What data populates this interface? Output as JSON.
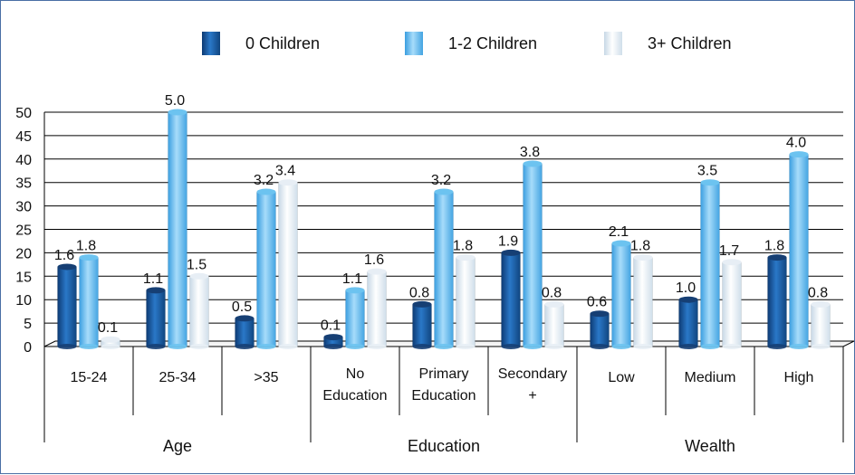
{
  "chart_data": {
    "type": "bar",
    "title": "",
    "xlabel": "",
    "ylabel": "",
    "ylim": [
      0,
      50
    ],
    "yticks": [
      0,
      5,
      10,
      15,
      20,
      25,
      30,
      35,
      40,
      45,
      50
    ],
    "grid": true,
    "legend_position": "top",
    "categories": [
      "15-24",
      "25-34",
      ">35",
      "No Education",
      "Primary Education",
      "Secondary +",
      "Low",
      "Medium",
      "High"
    ],
    "category_lines": [
      [
        "15-24"
      ],
      [
        "25-34"
      ],
      [
        ">35"
      ],
      [
        "No",
        "Education"
      ],
      [
        "Primary",
        "Education"
      ],
      [
        "Secondary",
        "+"
      ],
      [
        "Low"
      ],
      [
        "Medium"
      ],
      [
        "High"
      ]
    ],
    "groups": [
      {
        "label": "Age",
        "categories": [
          "15-24",
          "25-34",
          ">35"
        ]
      },
      {
        "label": "Education",
        "categories": [
          "No Education",
          "Primary Education",
          "Secondary +"
        ]
      },
      {
        "label": "Wealth",
        "categories": [
          "Low",
          "Medium",
          "High"
        ]
      }
    ],
    "series": [
      {
        "name": "0 Children",
        "color": "#1f5fa8",
        "values": [
          17,
          12,
          6,
          2,
          9,
          20,
          7,
          10,
          19
        ],
        "data_labels": [
          "1.6",
          "1.1",
          "0.5",
          "0.1",
          "0.8",
          "1.9",
          "0.6",
          "1.0",
          "1.8"
        ]
      },
      {
        "name": "1-2 Children",
        "color": "#5bb8ec",
        "values": [
          19,
          50,
          33,
          12,
          33,
          39,
          22,
          35,
          41
        ],
        "data_labels": [
          "1.8",
          "5.0",
          "3.2",
          "1.1",
          "3.2",
          "3.8",
          "2.1",
          "3.5",
          "4.0"
        ]
      },
      {
        "name": "3+ Children",
        "color": "#dde9f3",
        "values": [
          1.5,
          15,
          35,
          16,
          19,
          9,
          19,
          18,
          9
        ],
        "data_labels": [
          "0.1",
          "1.5",
          "3.4",
          "1.6",
          "1.8",
          "0.8",
          "1.8",
          "1.7",
          "0.8"
        ]
      }
    ]
  }
}
